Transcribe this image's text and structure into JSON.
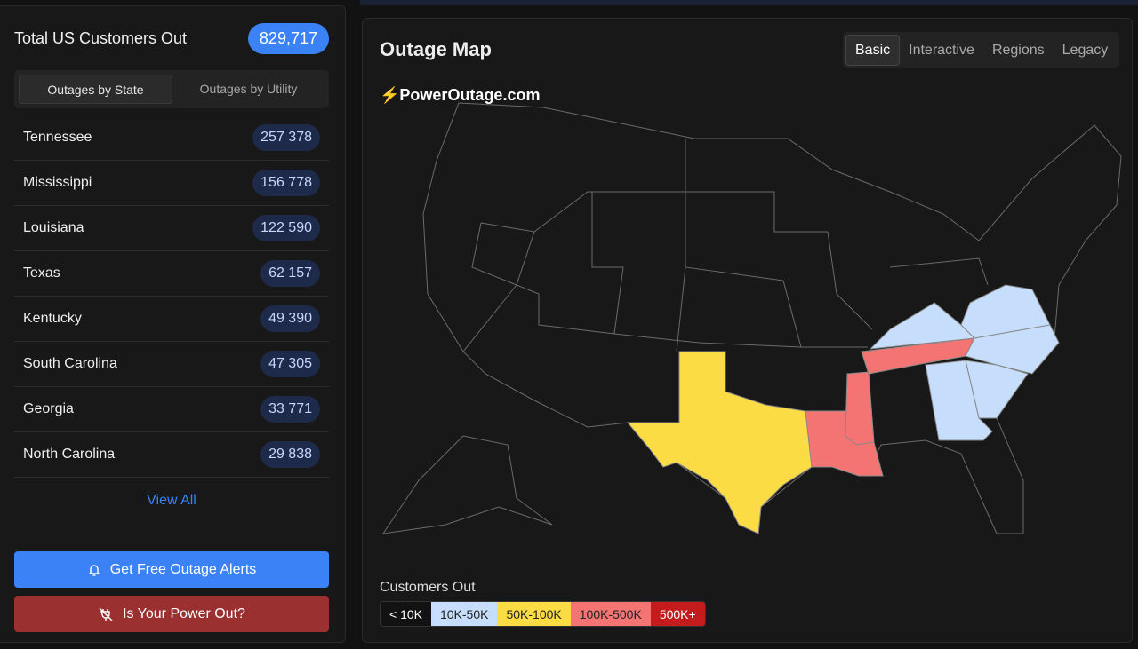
{
  "sidebar": {
    "total_label": "Total US Customers Out",
    "total_value": "829,717",
    "tabs": [
      "Outages by State",
      "Outages by Utility"
    ],
    "states": [
      {
        "name": "Tennessee",
        "value": "257 378"
      },
      {
        "name": "Mississippi",
        "value": "156 778"
      },
      {
        "name": "Louisiana",
        "value": "122 590"
      },
      {
        "name": "Texas",
        "value": "62 157"
      },
      {
        "name": "Kentucky",
        "value": "49 390"
      },
      {
        "name": "South Carolina",
        "value": "47 305"
      },
      {
        "name": "Georgia",
        "value": "33 771"
      },
      {
        "name": "North Carolina",
        "value": "29 838"
      }
    ],
    "view_all": "View All",
    "alerts_button": "Get Free Outage Alerts",
    "power_out_button": "Is Your Power Out?"
  },
  "main": {
    "title": "Outage Map",
    "views": [
      "Basic",
      "Interactive",
      "Regions",
      "Legacy"
    ],
    "active_view": "Basic",
    "brand": "PowerOutage.com",
    "legend_title": "Customers Out",
    "legend": [
      {
        "label": "< 10K",
        "color": "#121212",
        "text": "#fff"
      },
      {
        "label": "10K-50K",
        "color": "#c6defc",
        "text": "#222"
      },
      {
        "label": "50K-100K",
        "color": "#fcdc44",
        "text": "#222"
      },
      {
        "label": "100K-500K",
        "color": "#f47474",
        "text": "#222"
      },
      {
        "label": "500K+",
        "color": "#c41c1c",
        "text": "#fff"
      }
    ]
  }
}
